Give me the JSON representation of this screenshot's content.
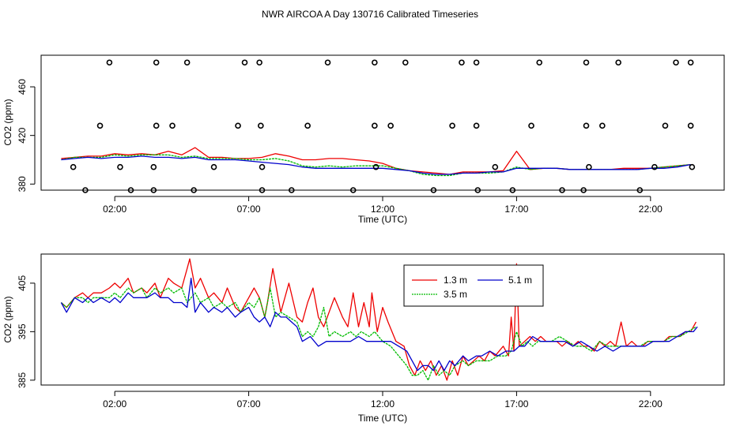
{
  "title": "NWR AIRCOA A  Day 130716  Calibrated Timeseries",
  "colors": {
    "red": "#ee0000",
    "green": "#00bb00",
    "blue": "#0000cc",
    "axis": "#000000"
  },
  "chart_data": [
    {
      "type": "scatter",
      "name": "top-panel",
      "xlabel": "Time (UTC)",
      "ylabel": "CO2 (ppm)",
      "xlim": [
        -0.75,
        24.75
      ],
      "ylim": [
        375,
        486
      ],
      "xticks": [
        2,
        7,
        12,
        17,
        22
      ],
      "xticklabels": [
        "02:00",
        "07:00",
        "12:00",
        "17:00",
        "22:00"
      ],
      "yticks": [
        380,
        420,
        460
      ],
      "yticklabels": [
        "380",
        "420",
        "460"
      ],
      "calibration_points": {
        "x": [
          1.8,
          3.55,
          4.7,
          6.85,
          7.4,
          9.95,
          11.7,
          12.85,
          14.95,
          15.5,
          17.85,
          19.6,
          20.8,
          22.95,
          23.5,
          1.45,
          3.55,
          4.15,
          6.6,
          7.45,
          9.2,
          11.7,
          12.3,
          14.6,
          15.5,
          17.55,
          19.6,
          20.2,
          22.55,
          23.5,
          0.9,
          2.6,
          3.45,
          4.95,
          7.5,
          8.6,
          10.9,
          13.9,
          15.55,
          16.85,
          18.7,
          19.5,
          21.6,
          0.45,
          2.2,
          3.45,
          5.7,
          7.5,
          11.75,
          16.2,
          19.7,
          22.15,
          23.55
        ],
        "y": [
          480,
          480,
          480,
          480,
          480,
          480,
          480,
          480,
          480,
          480,
          480,
          480,
          480,
          480,
          480,
          428,
          428,
          428,
          428,
          428,
          428,
          428,
          428,
          428,
          428,
          428,
          428,
          428,
          428,
          428,
          375,
          375,
          375,
          375,
          375,
          375,
          375,
          375,
          375,
          375,
          375,
          375,
          375,
          394,
          394,
          394,
          394,
          394,
          394,
          394,
          394,
          394,
          394
        ]
      },
      "series": [
        {
          "name": "1.3 m",
          "color": "#ee0000",
          "x": [
            0,
            0.5,
            1,
            1.5,
            2,
            2.5,
            3,
            3.5,
            4,
            4.5,
            5,
            5.5,
            6,
            6.5,
            7,
            7.5,
            8,
            8.5,
            9,
            9.5,
            10,
            10.5,
            11,
            11.5,
            12,
            12.5,
            13,
            13.5,
            14,
            14.5,
            15,
            15.5,
            16,
            16.5,
            17,
            17.5,
            18,
            18.5,
            19,
            19.5,
            20,
            20.5,
            21,
            21.5,
            22,
            22.5,
            23,
            23.5
          ],
          "y": [
            401,
            402,
            403,
            403,
            405,
            404,
            405,
            404,
            407,
            404,
            410,
            402,
            402,
            401,
            401,
            402,
            405,
            403,
            400,
            400,
            401,
            401,
            400,
            399,
            397,
            393,
            391,
            390,
            389,
            388,
            390,
            390,
            390,
            391,
            407,
            392,
            393,
            393,
            392,
            392,
            392,
            392,
            393,
            393,
            393,
            394,
            395,
            396
          ]
        },
        {
          "name": "3.5 m",
          "color": "#00bb00",
          "x": [
            0,
            0.5,
            1,
            1.5,
            2,
            2.5,
            3,
            3.5,
            4,
            4.5,
            5,
            5.5,
            6,
            6.5,
            7,
            7.5,
            8,
            8.5,
            9,
            9.5,
            10,
            10.5,
            11,
            11.5,
            12,
            12.5,
            13,
            13.5,
            14,
            14.5,
            15,
            15.5,
            16,
            16.5,
            17,
            17.5,
            18,
            18.5,
            19,
            19.5,
            20,
            20.5,
            21,
            21.5,
            22,
            22.5,
            23,
            23.5
          ],
          "y": [
            400,
            402,
            402,
            402,
            404,
            403,
            404,
            404,
            404,
            402,
            403,
            401,
            401,
            401,
            400,
            400,
            401,
            399,
            395,
            394,
            395,
            394,
            395,
            395,
            395,
            393,
            391,
            388,
            387,
            387,
            389,
            389,
            389,
            390,
            394,
            392,
            393,
            393,
            392,
            392,
            392,
            392,
            392,
            392,
            393,
            394,
            395,
            396
          ]
        },
        {
          "name": "5.1 m",
          "color": "#0000cc",
          "x": [
            0,
            0.5,
            1,
            1.5,
            2,
            2.5,
            3,
            3.5,
            4,
            4.5,
            5,
            5.5,
            6,
            6.5,
            7,
            7.5,
            8,
            8.5,
            9,
            9.5,
            10,
            10.5,
            11,
            11.5,
            12,
            12.5,
            13,
            13.5,
            14,
            14.5,
            15,
            15.5,
            16,
            16.5,
            17,
            17.5,
            18,
            18.5,
            19,
            19.5,
            20,
            20.5,
            21,
            21.5,
            22,
            22.5,
            23,
            23.5
          ],
          "y": [
            400,
            401,
            402,
            401,
            402,
            402,
            403,
            402,
            402,
            401,
            402,
            400,
            400,
            400,
            399,
            398,
            397,
            396,
            394,
            393,
            393,
            393,
            393,
            393,
            393,
            392,
            391,
            389,
            388,
            388,
            389,
            389,
            390,
            390,
            393,
            393,
            393,
            393,
            392,
            392,
            392,
            392,
            392,
            392,
            393,
            393,
            394,
            396
          ]
        }
      ]
    },
    {
      "type": "line",
      "name": "bottom-panel",
      "xlabel": "Time (UTC)",
      "ylabel": "CO2 (ppm)",
      "xlim": [
        -0.75,
        24.75
      ],
      "ylim": [
        384,
        411
      ],
      "xticks": [
        2,
        7,
        12,
        17,
        22
      ],
      "xticklabels": [
        "02:00",
        "07:00",
        "12:00",
        "17:00",
        "22:00"
      ],
      "yticks": [
        385,
        395,
        405
      ],
      "yticklabels": [
        "385",
        "395",
        "405"
      ],
      "legend_position": "top-center",
      "legend": [
        "1.3 m",
        "3.5 m",
        "5.1 m"
      ],
      "series": [
        {
          "name": "1.3 m",
          "color": "#ee0000",
          "x": [
            0,
            0.2,
            0.5,
            0.8,
            1,
            1.2,
            1.5,
            1.8,
            2,
            2.2,
            2.5,
            2.7,
            3,
            3.2,
            3.5,
            3.7,
            4,
            4.2,
            4.5,
            4.7,
            4.8,
            5,
            5.2,
            5.5,
            5.7,
            6,
            6.2,
            6.5,
            6.7,
            7,
            7.2,
            7.4,
            7.6,
            7.7,
            7.9,
            8.2,
            8.5,
            8.8,
            9,
            9.2,
            9.4,
            9.6,
            9.8,
            10,
            10.2,
            10.5,
            10.7,
            10.9,
            11.1,
            11.3,
            11.5,
            11.6,
            11.8,
            12,
            12.2,
            12.5,
            12.8,
            13,
            13.2,
            13.4,
            13.6,
            13.8,
            14,
            14.2,
            14.4,
            14.6,
            14.8,
            15,
            15.2,
            15.4,
            15.6,
            15.8,
            16,
            16.2,
            16.5,
            16.7,
            16.8,
            16.9,
            17,
            17.1,
            17.3,
            17.5,
            17.7,
            17.9,
            18.1,
            18.3,
            18.5,
            18.7,
            18.9,
            19.1,
            19.3,
            19.5,
            19.7,
            19.9,
            20.1,
            20.3,
            20.5,
            20.7,
            20.9,
            21.1,
            21.3,
            21.5,
            21.7,
            21.9,
            22.1,
            22.3,
            22.5,
            22.7,
            22.9,
            23.1,
            23.3,
            23.5,
            23.7
          ],
          "y": [
            401,
            400,
            402,
            403,
            402,
            403,
            403,
            404,
            405,
            404,
            406,
            403,
            404,
            403,
            405,
            402,
            406,
            405,
            404,
            408,
            410,
            404,
            406,
            402,
            403,
            401,
            404,
            400,
            399,
            402,
            404,
            402,
            398,
            401,
            408,
            399,
            405,
            398,
            397,
            401,
            404,
            398,
            396,
            399,
            402,
            398,
            396,
            403,
            396,
            401,
            396,
            403,
            395,
            400,
            397,
            393,
            392,
            388,
            386,
            389,
            387,
            389,
            386,
            388,
            385,
            389,
            386,
            390,
            388,
            389,
            390,
            389,
            391,
            390,
            392,
            390,
            398,
            391,
            409,
            392,
            393,
            394,
            393,
            394,
            393,
            393,
            393,
            392,
            393,
            392,
            393,
            392,
            392,
            391,
            393,
            392,
            393,
            392,
            397,
            392,
            393,
            392,
            392,
            393,
            393,
            393,
            393,
            394,
            394,
            394,
            395,
            395,
            397
          ]
        },
        {
          "name": "3.5 m",
          "color": "#00bb00",
          "x": [
            0,
            0.2,
            0.5,
            0.8,
            1,
            1.2,
            1.5,
            1.8,
            2,
            2.2,
            2.5,
            2.7,
            3,
            3.2,
            3.5,
            3.7,
            4,
            4.2,
            4.5,
            4.7,
            5,
            5.2,
            5.5,
            5.7,
            6,
            6.2,
            6.5,
            6.7,
            7,
            7.2,
            7.4,
            7.6,
            7.8,
            8,
            8.2,
            8.5,
            8.8,
            9,
            9.2,
            9.4,
            9.6,
            9.8,
            10,
            10.2,
            10.5,
            10.8,
            11,
            11.2,
            11.5,
            11.7,
            12,
            12.3,
            12.6,
            12.9,
            13.1,
            13.3,
            13.5,
            13.7,
            13.9,
            14.1,
            14.3,
            14.5,
            14.7,
            15,
            15.2,
            15.5,
            15.7,
            16,
            16.3,
            16.6,
            16.8,
            17,
            17.2,
            17.4,
            17.6,
            17.8,
            18,
            18.3,
            18.6,
            18.9,
            19.2,
            19.5,
            19.8,
            20.1,
            20.4,
            20.7,
            21,
            21.3,
            21.6,
            21.9,
            22.2,
            22.5,
            22.8,
            23.1,
            23.4,
            23.7
          ],
          "y": [
            401,
            400,
            402,
            402,
            401,
            402,
            402,
            402,
            403,
            402,
            404,
            403,
            404,
            402,
            404,
            403,
            404,
            403,
            404,
            401,
            403,
            401,
            402,
            400,
            401,
            400,
            401,
            399,
            401,
            400,
            402,
            398,
            404,
            398,
            399,
            398,
            397,
            394,
            395,
            394,
            396,
            400,
            394,
            395,
            394,
            395,
            394,
            395,
            394,
            395,
            393,
            392,
            390,
            388,
            386,
            386,
            387,
            385,
            388,
            386,
            387,
            386,
            388,
            389,
            388,
            389,
            389,
            389,
            390,
            390,
            391,
            395,
            392,
            393,
            392,
            393,
            393,
            393,
            394,
            393,
            392,
            392,
            391,
            393,
            392,
            392,
            392,
            392,
            392,
            393,
            393,
            393,
            394,
            394,
            395,
            396
          ]
        },
        {
          "name": "5.1 m",
          "color": "#0000cc",
          "x": [
            0,
            0.2,
            0.5,
            0.8,
            1,
            1.2,
            1.5,
            1.8,
            2,
            2.2,
            2.5,
            2.7,
            3,
            3.2,
            3.5,
            3.7,
            4,
            4.2,
            4.5,
            4.7,
            4.85,
            5,
            5.2,
            5.5,
            5.7,
            6,
            6.2,
            6.5,
            6.7,
            7,
            7.2,
            7.4,
            7.6,
            7.8,
            8,
            8.2,
            8.4,
            8.6,
            8.8,
            9,
            9.3,
            9.6,
            9.9,
            10.2,
            10.5,
            10.8,
            11.1,
            11.4,
            11.7,
            12,
            12.3,
            12.6,
            12.9,
            13.1,
            13.3,
            13.5,
            13.7,
            13.9,
            14.1,
            14.3,
            14.5,
            14.7,
            15,
            15.2,
            15.5,
            15.7,
            16,
            16.3,
            16.6,
            16.9,
            17.1,
            17.3,
            17.6,
            17.9,
            18.2,
            18.5,
            18.8,
            19.1,
            19.4,
            19.7,
            20,
            20.3,
            20.6,
            20.9,
            21.2,
            21.5,
            21.8,
            22.1,
            22.4,
            22.7,
            23,
            23.3,
            23.6,
            23.75
          ],
          "y": [
            401,
            399,
            402,
            401,
            402,
            401,
            402,
            401,
            402,
            401,
            403,
            402,
            402,
            402,
            403,
            402,
            402,
            401,
            401,
            400,
            406,
            399,
            401,
            399,
            400,
            399,
            400,
            398,
            399,
            400,
            398,
            397,
            398,
            396,
            399,
            398,
            398,
            397,
            396,
            393,
            394,
            392,
            393,
            393,
            393,
            393,
            394,
            393,
            393,
            393,
            393,
            392,
            391,
            389,
            387,
            388,
            388,
            387,
            389,
            387,
            389,
            388,
            390,
            389,
            390,
            390,
            391,
            390,
            391,
            391,
            392,
            392,
            394,
            393,
            393,
            393,
            393,
            392,
            393,
            392,
            391,
            392,
            391,
            392,
            392,
            392,
            392,
            393,
            393,
            393,
            394,
            395,
            395,
            396
          ]
        }
      ]
    }
  ]
}
